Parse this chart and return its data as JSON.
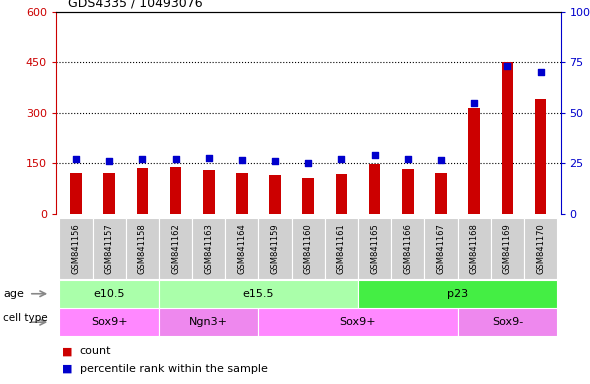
{
  "title": "GDS4335 / 10493076",
  "samples": [
    "GSM841156",
    "GSM841157",
    "GSM841158",
    "GSM841162",
    "GSM841163",
    "GSM841164",
    "GSM841159",
    "GSM841160",
    "GSM841161",
    "GSM841165",
    "GSM841166",
    "GSM841167",
    "GSM841168",
    "GSM841169",
    "GSM841170"
  ],
  "counts": [
    120,
    122,
    135,
    138,
    130,
    122,
    115,
    105,
    118,
    148,
    132,
    122,
    315,
    450,
    340
  ],
  "percentile_ranks": [
    27,
    26,
    27,
    27,
    27.5,
    26.5,
    26,
    25,
    27,
    29,
    27,
    26.5,
    55,
    73,
    70
  ],
  "ylim_left": [
    0,
    600
  ],
  "ylim_right": [
    0,
    100
  ],
  "yticks_left": [
    0,
    150,
    300,
    450,
    600
  ],
  "yticks_right": [
    0,
    25,
    50,
    75,
    100
  ],
  "age_groups": [
    {
      "label": "e10.5",
      "start": 0,
      "end": 3,
      "color": "#AAFFAA"
    },
    {
      "label": "e15.5",
      "start": 3,
      "end": 9,
      "color": "#AAFFAA"
    },
    {
      "label": "p23",
      "start": 9,
      "end": 15,
      "color": "#44EE44"
    }
  ],
  "cell_type_groups": [
    {
      "label": "Sox9+",
      "start": 0,
      "end": 3,
      "color": "#FF88FF"
    },
    {
      "label": "Ngn3+",
      "start": 3,
      "end": 6,
      "color": "#EE88EE"
    },
    {
      "label": "Sox9+",
      "start": 6,
      "end": 12,
      "color": "#FF88FF"
    },
    {
      "label": "Sox9-",
      "start": 12,
      "end": 15,
      "color": "#EE88EE"
    }
  ],
  "bar_color": "#CC0000",
  "dot_color": "#0000CC",
  "grid_color": "#000000",
  "tick_label_color_left": "#CC0000",
  "tick_label_color_right": "#0000CC",
  "legend_items": [
    {
      "label": "count",
      "color": "#CC0000"
    },
    {
      "label": "percentile rank within the sample",
      "color": "#0000CC"
    }
  ],
  "bar_width": 0.35
}
